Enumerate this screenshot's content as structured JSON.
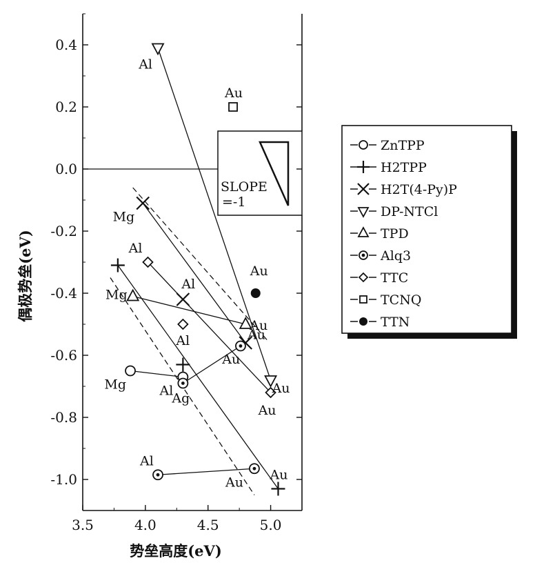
{
  "chart_data": {
    "type": "scatter",
    "xlabel": "势垒高度(eV)",
    "ylabel": "偶极势垒(eV)",
    "xlim": [
      3.5,
      5.25
    ],
    "ylim": [
      -1.1,
      0.5
    ],
    "xticks": [
      "3.5",
      "4.0",
      "4.5",
      "5.0"
    ],
    "yticks": [
      "0.4",
      "0.2",
      "0.0",
      "-0.2",
      "-0.4",
      "-0.6",
      "-0.8",
      "-1.0"
    ],
    "inset_text": [
      "SLOPE",
      "=-1"
    ],
    "legend": [
      {
        "label": "ZnTPP",
        "marker": "circle"
      },
      {
        "label": "H2TPP",
        "marker": "plus"
      },
      {
        "label": "H2T(4-Py)P",
        "marker": "cross"
      },
      {
        "label": "DP-NTCl",
        "marker": "triangle-down"
      },
      {
        "label": "TPD",
        "marker": "triangle-up"
      },
      {
        "label": "Alq3",
        "marker": "dot-circle"
      },
      {
        "label": "TTC",
        "marker": "diamond"
      },
      {
        "label": "TCNQ",
        "marker": "square"
      },
      {
        "label": "TTN",
        "marker": "filled-circle"
      }
    ],
    "series": [
      {
        "marker": "circle",
        "x": [
          3.88,
          4.3
        ],
        "y": [
          -0.65,
          -0.67
        ],
        "labels": [
          "Mg",
          "Al"
        ]
      },
      {
        "marker": "plus",
        "x": [
          3.78,
          4.3,
          5.06
        ],
        "y": [
          -0.31,
          -0.63,
          -1.03
        ],
        "labels": [
          "",
          "",
          "Au"
        ]
      },
      {
        "marker": "cross",
        "x": [
          3.98,
          4.3,
          4.8
        ],
        "y": [
          -0.11,
          -0.42,
          -0.56
        ],
        "labels": [
          "Mg",
          "Al",
          "Au"
        ]
      },
      {
        "marker": "triangle-down",
        "x": [
          4.1,
          5.0
        ],
        "y": [
          0.39,
          -0.68
        ],
        "labels": [
          "Al",
          "Au"
        ]
      },
      {
        "marker": "triangle-up",
        "x": [
          3.9,
          4.8
        ],
        "y": [
          -0.41,
          -0.5
        ],
        "labels": [
          "Mg",
          "Au"
        ]
      },
      {
        "marker": "dot-circle",
        "x": [
          4.3,
          4.76,
          4.1,
          4.87
        ],
        "y": [
          -0.69,
          -0.57,
          -0.985,
          -0.965
        ],
        "labels": [
          "Ag",
          "Au",
          "Al",
          "Au"
        ]
      },
      {
        "marker": "diamond",
        "x": [
          4.02,
          4.3,
          5.0
        ],
        "y": [
          -0.3,
          -0.5,
          -0.72
        ],
        "labels": [
          "Al",
          "Al",
          "Au"
        ]
      },
      {
        "marker": "square",
        "x": [
          4.7
        ],
        "y": [
          0.2
        ],
        "labels": [
          "Au"
        ]
      },
      {
        "marker": "filled-circle",
        "x": [
          4.88
        ],
        "y": [
          -0.4
        ],
        "labels": [
          "Au"
        ]
      }
    ],
    "solid_lines": [
      [
        [
          4.1,
          0.39
        ],
        [
          5.0,
          -0.68
        ]
      ],
      [
        [
          3.98,
          -0.11
        ],
        [
          4.8,
          -0.56
        ]
      ],
      [
        [
          3.9,
          -0.41
        ],
        [
          4.8,
          -0.5
        ]
      ],
      [
        [
          4.02,
          -0.3
        ],
        [
          5.0,
          -0.72
        ]
      ],
      [
        [
          3.88,
          -0.65
        ],
        [
          4.3,
          -0.67
        ]
      ],
      [
        [
          4.3,
          -0.69
        ],
        [
          4.76,
          -0.57
        ]
      ],
      [
        [
          4.1,
          -0.985
        ],
        [
          4.87,
          -0.965
        ]
      ],
      [
        [
          3.78,
          -0.31
        ],
        [
          5.06,
          -1.03
        ]
      ]
    ],
    "dashed_lines": [
      [
        [
          3.9,
          -0.06
        ],
        [
          4.97,
          -0.55
        ]
      ],
      [
        [
          3.72,
          -0.35
        ],
        [
          4.87,
          -1.05
        ]
      ]
    ],
    "reference_line": 0.0
  }
}
